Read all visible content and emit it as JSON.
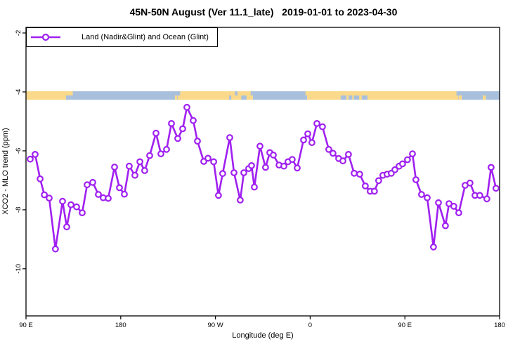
{
  "colors": {
    "series_purple": "#A020F0",
    "land": "#FAD98A",
    "ocean": "#A9C0DC",
    "axis": "#000000",
    "background": "#FFFFFF"
  },
  "chart_data": {
    "type": "line",
    "title": "45N-50N August (Ver 11.1_late)   2019-01-01 to 2023-04-30",
    "xlabel": "Longitude (deg E)",
    "ylabel": "XCO2 - MLO trend (ppm)",
    "xlim": [
      90,
      540
    ],
    "ylim": [
      -11.6,
      -1.81
    ],
    "grid": false,
    "legend": {
      "label": "Land (Nadir&Glint) and Ocean (Glint)",
      "position": "top-left"
    },
    "x_ticks": [
      {
        "lon": 90,
        "label": "90 E"
      },
      {
        "lon": 180,
        "label": "180"
      },
      {
        "lon": 270,
        "label": "90 W"
      },
      {
        "lon": 360,
        "label": "0"
      },
      {
        "lon": 450,
        "label": "90 E"
      },
      {
        "lon": 540,
        "label": "180"
      }
    ],
    "y_ticks": [
      {
        "value": -2,
        "label": "-2"
      },
      {
        "value": -4,
        "label": "-4"
      },
      {
        "value": -6,
        "label": "-6"
      },
      {
        "value": -8,
        "label": "-8"
      },
      {
        "value": -10,
        "label": "-10"
      }
    ],
    "map_band": {
      "land_color": "#FAD98A",
      "ocean_color": "#A9C0DC",
      "segments": [
        {
          "from": 90,
          "to": 131.4,
          "type": "land"
        },
        {
          "from": 131.4,
          "to": 234.2,
          "type": "ocean"
        },
        {
          "from": 234.2,
          "to": 305.6,
          "type": "land"
        },
        {
          "from": 305.6,
          "to": 357.1,
          "type": "ocean"
        },
        {
          "from": 357.1,
          "to": 500.6,
          "type": "land"
        },
        {
          "from": 500.6,
          "to": 540,
          "type": "ocean"
        }
      ],
      "speckles": [
        {
          "from": 128.0,
          "to": 131.4,
          "color": "ocean",
          "pos": "bottom"
        },
        {
          "from": 131.4,
          "to": 134.5,
          "color": "land",
          "pos": "top"
        },
        {
          "from": 231.5,
          "to": 233.8,
          "color": "land",
          "pos": "bottom"
        },
        {
          "from": 234.2,
          "to": 236.5,
          "color": "ocean",
          "pos": "top"
        },
        {
          "from": 283.0,
          "to": 285.0,
          "color": "ocean",
          "pos": "bottom"
        },
        {
          "from": 288.5,
          "to": 291.0,
          "color": "ocean",
          "pos": "top"
        },
        {
          "from": 294.5,
          "to": 299.5,
          "color": "ocean",
          "pos": "bottom"
        },
        {
          "from": 303.5,
          "to": 305.6,
          "color": "ocean",
          "pos": "top"
        },
        {
          "from": 355.5,
          "to": 357.1,
          "color": "land",
          "pos": "top"
        },
        {
          "from": 389.0,
          "to": 394.5,
          "color": "ocean",
          "pos": "bottom"
        },
        {
          "from": 396.5,
          "to": 400.0,
          "color": "ocean",
          "pos": "bottom"
        },
        {
          "from": 401.5,
          "to": 406.5,
          "color": "ocean",
          "pos": "bottom"
        },
        {
          "from": 409.0,
          "to": 414.5,
          "color": "ocean",
          "pos": "bottom"
        },
        {
          "from": 499.0,
          "to": 501.5,
          "color": "ocean",
          "pos": "top"
        },
        {
          "from": 501.0,
          "to": 504.0,
          "color": "land",
          "pos": "bottom"
        },
        {
          "from": 524.0,
          "to": 527.0,
          "color": "land",
          "pos": "bottom"
        }
      ]
    },
    "series": [
      {
        "name": "Land (Nadir&Glint) and Ocean (Glint)",
        "color": "#A020F0",
        "marker": "open-circle",
        "points": [
          [
            94.0,
            -6.28
          ],
          [
            98.7,
            -6.12
          ],
          [
            103.4,
            -6.95
          ],
          [
            107.4,
            -7.49
          ],
          [
            112.0,
            -7.6
          ],
          [
            118.0,
            -9.33
          ],
          [
            124.7,
            -7.71
          ],
          [
            128.7,
            -8.58
          ],
          [
            132.7,
            -7.83
          ],
          [
            138.1,
            -7.9
          ],
          [
            143.4,
            -8.1
          ],
          [
            148.1,
            -7.15
          ],
          [
            153.4,
            -7.07
          ],
          [
            158.8,
            -7.48
          ],
          [
            163.4,
            -7.59
          ],
          [
            168.1,
            -7.61
          ],
          [
            174.1,
            -6.55
          ],
          [
            178.8,
            -7.25
          ],
          [
            183.5,
            -7.47
          ],
          [
            188.1,
            -6.52
          ],
          [
            193.5,
            -6.83
          ],
          [
            198.2,
            -6.37
          ],
          [
            202.8,
            -6.67
          ],
          [
            207.5,
            -6.16
          ],
          [
            213.5,
            -5.4
          ],
          [
            218.2,
            -6.1
          ],
          [
            223.5,
            -5.95
          ],
          [
            228.2,
            -5.07
          ],
          [
            234.2,
            -5.58
          ],
          [
            238.9,
            -5.25
          ],
          [
            242.9,
            -4.52
          ],
          [
            248.9,
            -4.97
          ],
          [
            252.9,
            -5.67
          ],
          [
            258.9,
            -6.36
          ],
          [
            262.9,
            -6.25
          ],
          [
            268.3,
            -6.37
          ],
          [
            272.9,
            -7.51
          ],
          [
            276.9,
            -6.77
          ],
          [
            283.6,
            -5.55
          ],
          [
            287.6,
            -6.74
          ],
          [
            293.6,
            -7.67
          ],
          [
            297.0,
            -6.74
          ],
          [
            301.6,
            -6.6
          ],
          [
            304.3,
            -6.5
          ],
          [
            307.0,
            -7.23
          ],
          [
            312.3,
            -5.84
          ],
          [
            317.6,
            -6.56
          ],
          [
            321.7,
            -6.06
          ],
          [
            325.0,
            -6.14
          ],
          [
            330.4,
            -6.48
          ],
          [
            335.0,
            -6.52
          ],
          [
            339.0,
            -6.37
          ],
          [
            343.0,
            -6.29
          ],
          [
            347.7,
            -6.58
          ],
          [
            353.7,
            -5.63
          ],
          [
            357.7,
            -5.42
          ],
          [
            361.7,
            -5.72
          ],
          [
            366.4,
            -5.07
          ],
          [
            371.7,
            -5.18
          ],
          [
            377.7,
            -5.95
          ],
          [
            381.7,
            -6.08
          ],
          [
            387.1,
            -6.26
          ],
          [
            391.1,
            -6.34
          ],
          [
            396.4,
            -6.12
          ],
          [
            401.8,
            -6.76
          ],
          [
            407.1,
            -6.79
          ],
          [
            412.4,
            -7.19
          ],
          [
            417.1,
            -7.37
          ],
          [
            421.1,
            -7.37
          ],
          [
            425.1,
            -7.01
          ],
          [
            429.1,
            -6.83
          ],
          [
            433.1,
            -6.79
          ],
          [
            437.1,
            -6.76
          ],
          [
            440.5,
            -6.64
          ],
          [
            444.5,
            -6.52
          ],
          [
            447.8,
            -6.44
          ],
          [
            452.5,
            -6.3
          ],
          [
            457.2,
            -6.1
          ],
          [
            460.5,
            -6.98
          ],
          [
            465.8,
            -7.48
          ],
          [
            471.2,
            -7.59
          ],
          [
            477.2,
            -9.26
          ],
          [
            481.9,
            -7.76
          ],
          [
            488.5,
            -8.54
          ],
          [
            491.9,
            -7.79
          ],
          [
            496.5,
            -7.88
          ],
          [
            501.2,
            -8.1
          ],
          [
            507.2,
            -7.17
          ],
          [
            511.9,
            -7.09
          ],
          [
            516.6,
            -7.51
          ],
          [
            521.2,
            -7.51
          ],
          [
            527.9,
            -7.63
          ],
          [
            531.9,
            -6.56
          ],
          [
            536.6,
            -7.27
          ]
        ]
      }
    ]
  }
}
